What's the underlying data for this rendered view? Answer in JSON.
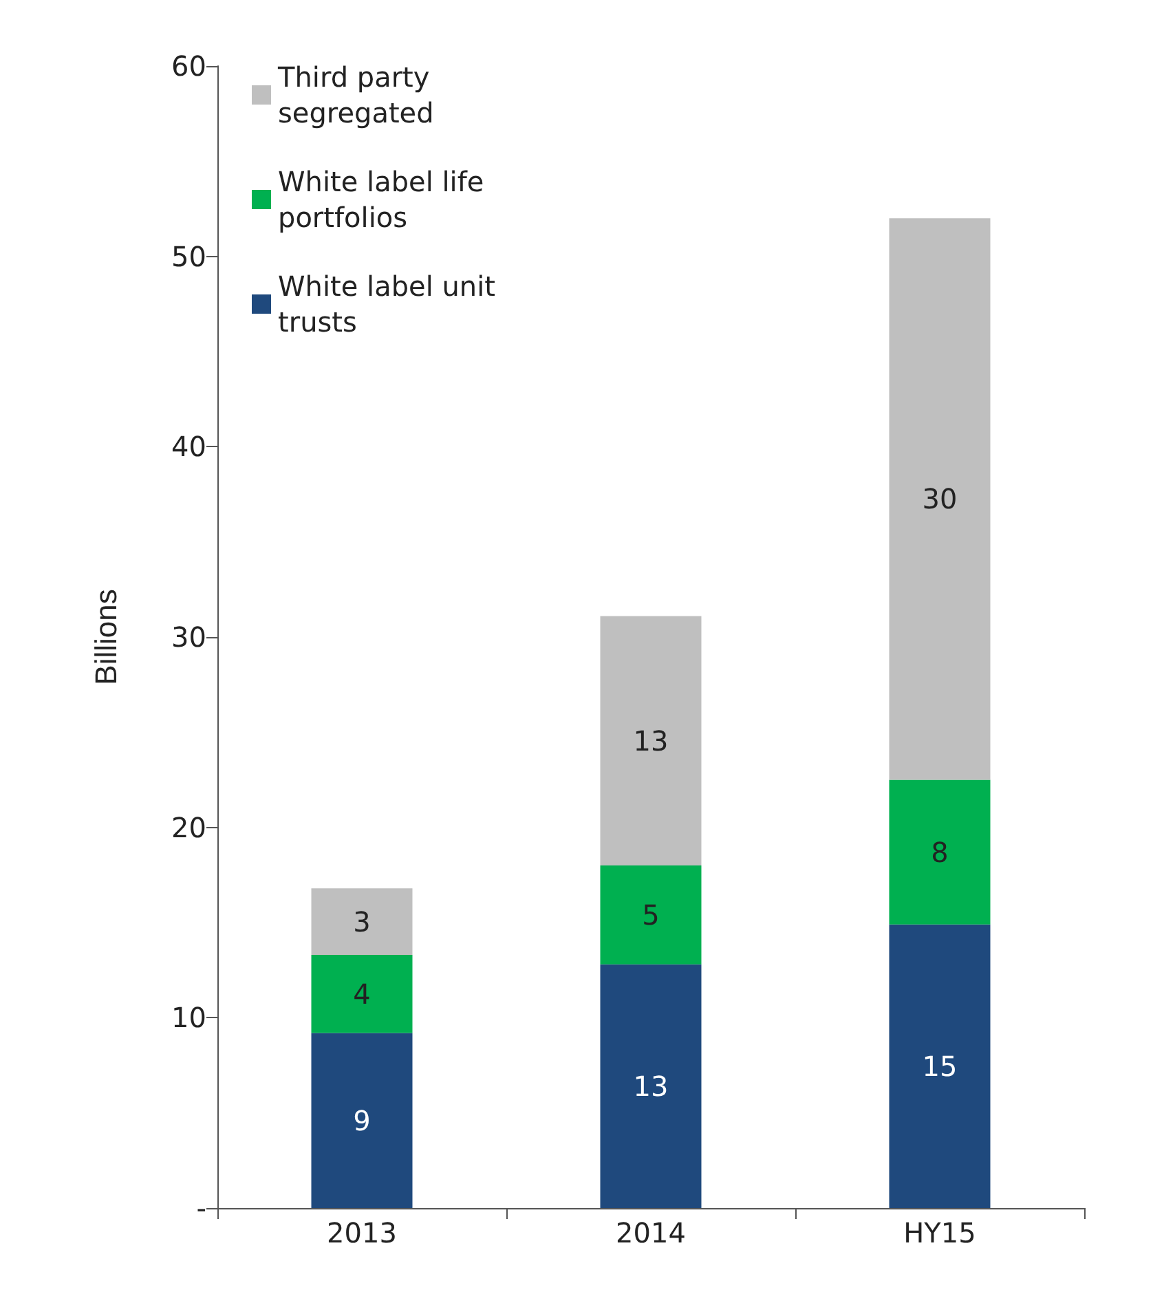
{
  "chart_data": {
    "type": "bar",
    "stacked": true,
    "ylabel": "Billions",
    "categories": [
      "2013",
      "2014",
      "HY15"
    ],
    "series": [
      {
        "name": "White label unit trusts",
        "color": "#1f497d",
        "values": [
          9.2,
          12.8,
          14.9
        ],
        "value_labels": [
          "9",
          "13",
          "15"
        ]
      },
      {
        "name": "White label life portfolios",
        "color": "#00b050",
        "values": [
          4.1,
          5.2,
          7.6
        ],
        "value_labels": [
          "4",
          "5",
          "8"
        ]
      },
      {
        "name": "Third party segregated",
        "color": "#bfbfbf",
        "values": [
          3.5,
          13.1,
          29.5
        ],
        "value_labels": [
          "3",
          "13",
          "30"
        ]
      }
    ],
    "ylim": [
      0,
      60
    ],
    "yticks": [
      {
        "value": 0,
        "label": "-"
      },
      10,
      20,
      30,
      40,
      50,
      60
    ],
    "grid": false,
    "legend": "top left"
  }
}
